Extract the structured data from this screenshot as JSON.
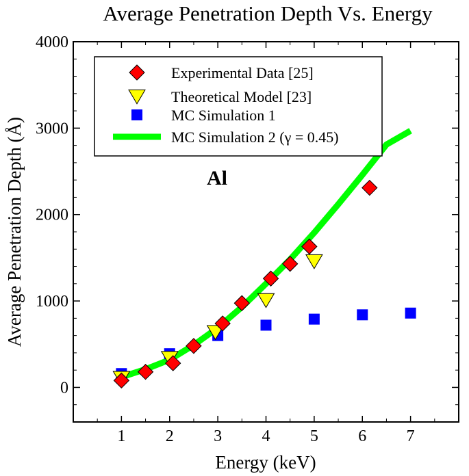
{
  "chart_data": {
    "type": "scatter",
    "title": "Average Penetration Depth Vs. Energy",
    "xlabel": "Energy (keV)",
    "ylabel": "Average Penetration Depth (Å)",
    "xlim": [
      0,
      8
    ],
    "ylim": [
      -400,
      4000
    ],
    "x_ticks": [
      1,
      2,
      3,
      4,
      5,
      6,
      7
    ],
    "x_tick_labels": [
      "1",
      "2",
      "3",
      "4",
      "5",
      "6",
      "7"
    ],
    "y_ticks": [
      0,
      1000,
      2000,
      3000,
      4000
    ],
    "y_tick_labels": [
      "0",
      "1000",
      "2000",
      "3000",
      "4000"
    ],
    "grid": false,
    "legend_position": "top-left",
    "annotation": "Al",
    "series": [
      {
        "name": "Experimental Data [25]",
        "marker": "diamond",
        "color": "#ff0000",
        "x": [
          1.0,
          1.5,
          2.07,
          2.5,
          3.1,
          3.5,
          4.1,
          4.5,
          4.9,
          6.15
        ],
        "y": [
          80,
          180,
          280,
          480,
          740,
          975,
          1260,
          1430,
          1630,
          2310
        ]
      },
      {
        "name": "Theoretical Model [23]",
        "marker": "triangle-down",
        "color": "#ffff00",
        "x": [
          1.0,
          2.0,
          2.95,
          4.0,
          5.0
        ],
        "y": [
          110,
          340,
          640,
          1010,
          1460
        ]
      },
      {
        "name": "MC Simulation 1",
        "marker": "square",
        "color": "#0000ff",
        "x": [
          1.0,
          2.0,
          3.0,
          4.0,
          5.0,
          6.0,
          7.0
        ],
        "y": [
          160,
          390,
          600,
          720,
          790,
          840,
          860
        ]
      },
      {
        "name": "MC Simulation 2 (γ = 0.45)",
        "marker": "line",
        "color": "#00ff00",
        "x": [
          1.0,
          1.5,
          2.0,
          2.5,
          3.0,
          3.5,
          4.0,
          4.5,
          5.0,
          5.5,
          6.0,
          6.5,
          7.0
        ],
        "y": [
          120,
          210,
          320,
          490,
          690,
          930,
          1200,
          1480,
          1790,
          2120,
          2460,
          2810,
          2970
        ]
      }
    ]
  }
}
